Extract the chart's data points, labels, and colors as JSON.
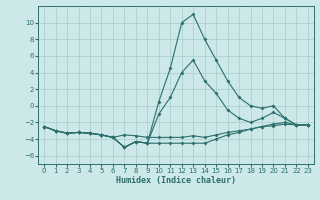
{
  "xlabel": "Humidex (Indice chaleur)",
  "bg_color": "#cce8e8",
  "grid_color": "#a8cccc",
  "line_color": "#2d6e6e",
  "xlim": [
    -0.5,
    23.5
  ],
  "ylim": [
    -7,
    12
  ],
  "yticks": [
    -6,
    -4,
    -2,
    0,
    2,
    4,
    6,
    8,
    10
  ],
  "xticks": [
    0,
    1,
    2,
    3,
    4,
    5,
    6,
    7,
    8,
    9,
    10,
    11,
    12,
    13,
    14,
    15,
    16,
    17,
    18,
    19,
    20,
    21,
    22,
    23
  ],
  "line1_x": [
    0,
    1,
    2,
    3,
    4,
    5,
    6,
    7,
    8,
    9,
    10,
    11,
    12,
    13,
    14,
    15,
    16,
    17,
    18,
    19,
    20,
    21,
    22,
    23
  ],
  "line1_y": [
    -2.5,
    -3.0,
    -3.3,
    -3.2,
    -3.3,
    -3.5,
    -3.8,
    -3.5,
    -3.6,
    -3.8,
    -3.8,
    -3.8,
    -3.8,
    -3.6,
    -3.8,
    -3.5,
    -3.2,
    -3.0,
    -2.8,
    -2.5,
    -2.4,
    -2.2,
    -2.3,
    -2.3
  ],
  "line2_x": [
    0,
    1,
    2,
    3,
    4,
    5,
    6,
    7,
    8,
    9,
    10,
    11,
    12,
    13,
    14,
    15,
    16,
    17,
    18,
    19,
    20,
    21,
    22,
    23
  ],
  "line2_y": [
    -2.5,
    -3.0,
    -3.3,
    -3.2,
    -3.3,
    -3.5,
    -3.8,
    -5.0,
    -4.3,
    -4.5,
    -4.5,
    -4.5,
    -4.5,
    -4.5,
    -4.5,
    -4.0,
    -3.5,
    -3.2,
    -2.8,
    -2.5,
    -2.2,
    -2.0,
    -2.3,
    -2.3
  ],
  "line3_x": [
    0,
    1,
    2,
    3,
    4,
    5,
    6,
    7,
    8,
    9,
    10,
    11,
    12,
    13,
    14,
    15,
    16,
    17,
    18,
    19,
    20,
    21,
    22,
    23
  ],
  "line3_y": [
    -2.5,
    -3.0,
    -3.3,
    -3.2,
    -3.3,
    -3.5,
    -3.8,
    -5.0,
    -4.3,
    -4.5,
    -1.0,
    1.0,
    4.0,
    5.5,
    3.0,
    1.5,
    -0.5,
    -1.5,
    -2.0,
    -1.5,
    -0.8,
    -1.5,
    -2.3,
    -2.3
  ],
  "line4_x": [
    0,
    1,
    2,
    3,
    4,
    5,
    6,
    7,
    8,
    9,
    10,
    11,
    12,
    13,
    14,
    15,
    16,
    17,
    18,
    19,
    20,
    21,
    22,
    23
  ],
  "line4_y": [
    -2.5,
    -3.0,
    -3.3,
    -3.2,
    -3.3,
    -3.5,
    -3.8,
    -5.0,
    -4.3,
    -4.5,
    0.5,
    4.5,
    10.0,
    11.0,
    8.0,
    5.5,
    3.0,
    1.0,
    0.0,
    -0.3,
    0.0,
    -1.5,
    -2.3,
    -2.3
  ]
}
